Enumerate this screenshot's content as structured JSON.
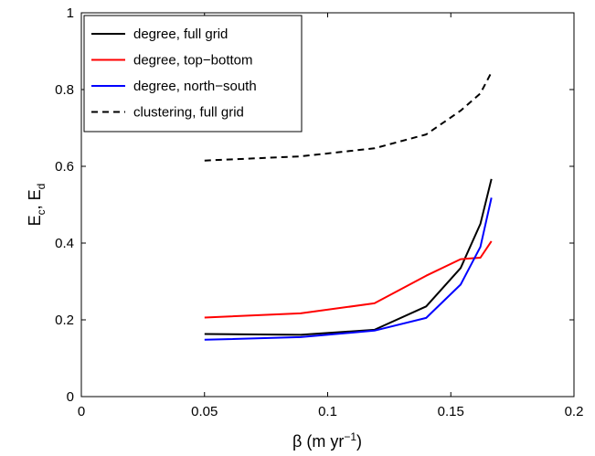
{
  "chart_data": {
    "type": "line",
    "xlabel_parts": {
      "pre": "β (m yr",
      "sup": "−1",
      "post": ")"
    },
    "ylabel_parts": {
      "a": "E",
      "a_sub": "c",
      "sep": ", ",
      "b": "E",
      "b_sub": "d"
    },
    "xlim": [
      0,
      0.2
    ],
    "ylim": [
      0,
      1
    ],
    "xticks": [
      0,
      0.05,
      0.1,
      0.15,
      0.2
    ],
    "yticks": [
      0,
      0.2,
      0.4,
      0.6,
      0.8,
      1
    ],
    "xtick_labels": [
      "0",
      "0.05",
      "0.1",
      "0.15",
      "0.2"
    ],
    "ytick_labels": [
      "0",
      "0.2",
      "0.4",
      "0.6",
      "0.8",
      "1"
    ],
    "grid": false,
    "legend_position": "top-left",
    "series": [
      {
        "name": "degree, full grid",
        "color": "#000000",
        "dash": "solid",
        "x": [
          0.05,
          0.089,
          0.119,
          0.14,
          0.154,
          0.162,
          0.1665
        ],
        "y": [
          0.163,
          0.161,
          0.174,
          0.235,
          0.335,
          0.45,
          0.567
        ]
      },
      {
        "name": "degree, top−bottom",
        "color": "#ff0000",
        "dash": "solid",
        "x": [
          0.05,
          0.089,
          0.119,
          0.14,
          0.154,
          0.162,
          0.1665
        ],
        "y": [
          0.206,
          0.217,
          0.243,
          0.315,
          0.358,
          0.362,
          0.405
        ]
      },
      {
        "name": "degree, north−south",
        "color": "#0000ff",
        "dash": "solid",
        "x": [
          0.05,
          0.089,
          0.119,
          0.14,
          0.154,
          0.162,
          0.1665
        ],
        "y": [
          0.148,
          0.155,
          0.172,
          0.205,
          0.292,
          0.39,
          0.518
        ]
      },
      {
        "name": "clustering, full grid",
        "color": "#000000",
        "dash": "dashed",
        "x": [
          0.05,
          0.089,
          0.119,
          0.14,
          0.154,
          0.162,
          0.1665
        ],
        "y": [
          0.615,
          0.626,
          0.647,
          0.683,
          0.745,
          0.79,
          0.845
        ]
      }
    ]
  }
}
